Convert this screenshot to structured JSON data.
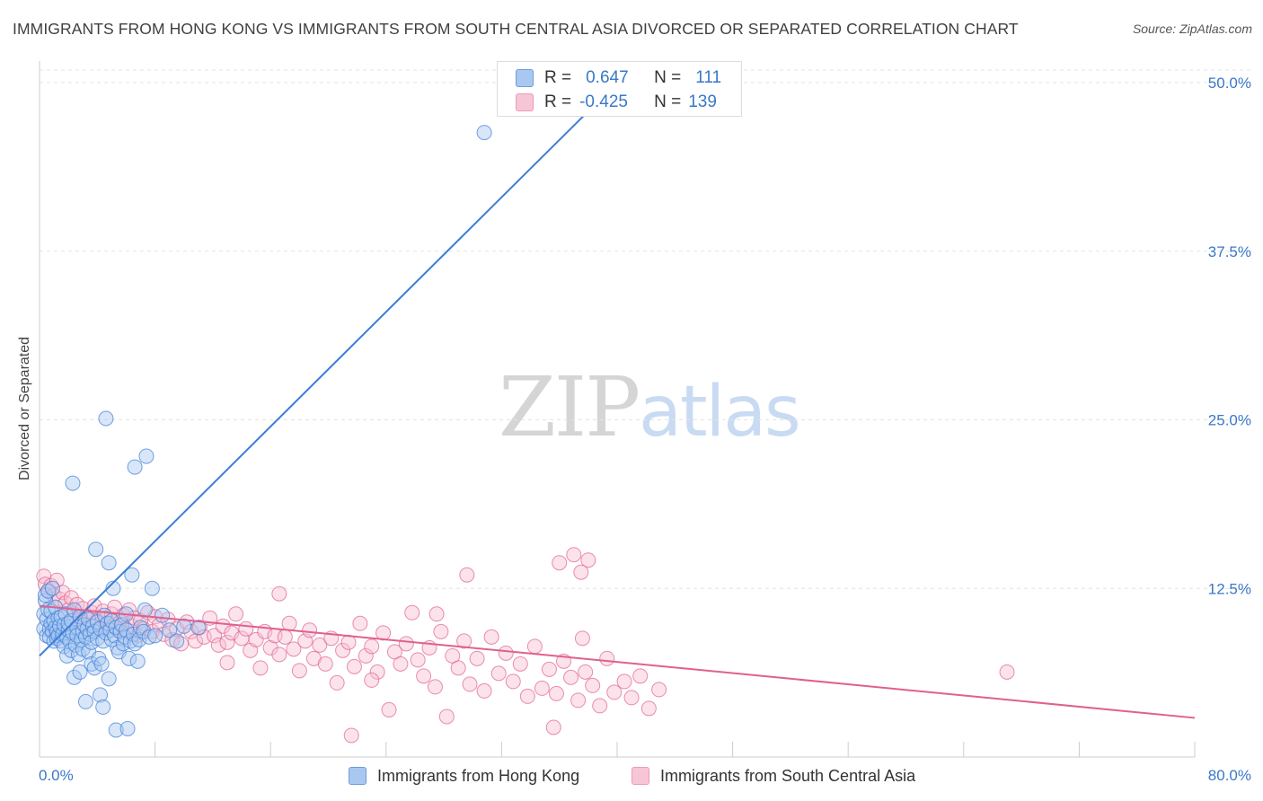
{
  "title": "IMMIGRANTS FROM HONG KONG VS IMMIGRANTS FROM SOUTH CENTRAL ASIA DIVORCED OR SEPARATED CORRELATION CHART",
  "source": "Source: ZipAtlas.com",
  "watermark": {
    "zip": "ZIP",
    "atlas": "atlas"
  },
  "legend_stats": [
    {
      "r_label": "R =",
      "r_value": "0.647",
      "n_label": "N =",
      "n_value": "111",
      "color": "#7fb0ee"
    },
    {
      "r_label": "R =",
      "r_value": "-0.425",
      "n_label": "N =",
      "n_value": "139",
      "color": "#f4a6c0"
    }
  ],
  "chart_data": {
    "type": "scatter",
    "title": "IMMIGRANTS FROM HONG KONG VS IMMIGRANTS FROM SOUTH CENTRAL ASIA DIVORCED OR SEPARATED CORRELATION CHART",
    "xlabel": "",
    "ylabel": "Divorced or Separated",
    "xlim": [
      0,
      80
    ],
    "ylim": [
      0,
      50
    ],
    "x_tick_labels": [
      "0.0%",
      "80.0%"
    ],
    "y_ticks": [
      12.5,
      25.0,
      37.5,
      50.0
    ],
    "y_tick_labels": [
      "12.5%",
      "25.0%",
      "37.5%",
      "50.0%"
    ],
    "grid": true,
    "legend_position": "bottom",
    "series": [
      {
        "name": "Immigrants from Hong Kong",
        "color": "#3b7dd8",
        "fill": "#a9c8f0",
        "trend": [
          [
            0,
            7.5
          ],
          [
            40,
            50
          ]
        ],
        "points": [
          [
            0.3,
            9.5
          ],
          [
            0.3,
            10.6
          ],
          [
            0.4,
            11.6
          ],
          [
            0.4,
            12.0
          ],
          [
            0.5,
            9.0
          ],
          [
            0.5,
            10.2
          ],
          [
            0.6,
            12.3
          ],
          [
            0.6,
            10.9
          ],
          [
            0.7,
            9.5
          ],
          [
            0.7,
            8.9
          ],
          [
            0.8,
            9.9
          ],
          [
            0.8,
            10.8
          ],
          [
            0.9,
            9.3
          ],
          [
            0.9,
            12.5
          ],
          [
            1.0,
            8.6
          ],
          [
            1.0,
            10.1
          ],
          [
            1.1,
            9.6
          ],
          [
            1.1,
            11.1
          ],
          [
            1.2,
            9.3
          ],
          [
            1.2,
            8.8
          ],
          [
            1.3,
            10.3
          ],
          [
            1.3,
            9.0
          ],
          [
            1.4,
            9.7
          ],
          [
            1.5,
            8.6
          ],
          [
            1.5,
            10.4
          ],
          [
            1.6,
            9.1
          ],
          [
            1.7,
            8.2
          ],
          [
            1.7,
            9.8
          ],
          [
            1.8,
            10.6
          ],
          [
            1.9,
            8.9
          ],
          [
            1.9,
            7.5
          ],
          [
            2.0,
            9.4
          ],
          [
            2.0,
            9.9
          ],
          [
            2.1,
            8.6
          ],
          [
            2.2,
            10.1
          ],
          [
            2.2,
            7.9
          ],
          [
            2.3,
            9.2
          ],
          [
            2.4,
            5.9
          ],
          [
            2.4,
            10.9
          ],
          [
            2.5,
            8.3
          ],
          [
            2.6,
            9.6
          ],
          [
            2.6,
            9.0
          ],
          [
            2.7,
            7.6
          ],
          [
            2.8,
            6.3
          ],
          [
            2.8,
            10.4
          ],
          [
            2.9,
            8.7
          ],
          [
            3.0,
            9.3
          ],
          [
            3.0,
            8.0
          ],
          [
            3.1,
            9.8
          ],
          [
            3.2,
            4.1
          ],
          [
            3.2,
            8.9
          ],
          [
            3.3,
            9.5
          ],
          [
            3.4,
            7.8
          ],
          [
            3.4,
            10.2
          ],
          [
            3.5,
            9.1
          ],
          [
            3.6,
            6.9
          ],
          [
            3.6,
            8.5
          ],
          [
            3.7,
            9.7
          ],
          [
            3.8,
            6.6
          ],
          [
            3.8,
            9.3
          ],
          [
            3.9,
            15.4
          ],
          [
            4.0,
            8.8
          ],
          [
            4.0,
            10.0
          ],
          [
            4.1,
            7.3
          ],
          [
            4.2,
            4.6
          ],
          [
            4.2,
            9.5
          ],
          [
            4.3,
            6.9
          ],
          [
            4.4,
            3.7
          ],
          [
            4.4,
            8.6
          ],
          [
            4.5,
            10.5
          ],
          [
            4.6,
            9.2
          ],
          [
            4.7,
            9.9
          ],
          [
            4.8,
            14.4
          ],
          [
            4.8,
            5.8
          ],
          [
            4.9,
            9.4
          ],
          [
            5.0,
            8.7
          ],
          [
            5.0,
            10.1
          ],
          [
            5.1,
            12.5
          ],
          [
            5.2,
            9.0
          ],
          [
            5.3,
            9.6
          ],
          [
            5.3,
            2.0
          ],
          [
            5.4,
            8.1
          ],
          [
            5.5,
            7.8
          ],
          [
            5.6,
            9.3
          ],
          [
            5.7,
            9.8
          ],
          [
            5.8,
            8.4
          ],
          [
            5.9,
            8.9
          ],
          [
            6.0,
            10.6
          ],
          [
            6.0,
            9.4
          ],
          [
            6.1,
            2.1
          ],
          [
            6.2,
            7.3
          ],
          [
            6.3,
            8.6
          ],
          [
            6.4,
            13.5
          ],
          [
            6.5,
            9.1
          ],
          [
            6.6,
            8.4
          ],
          [
            6.6,
            21.5
          ],
          [
            6.8,
            7.1
          ],
          [
            6.9,
            8.7
          ],
          [
            7.0,
            9.6
          ],
          [
            7.2,
            9.3
          ],
          [
            7.3,
            10.9
          ],
          [
            7.4,
            22.3
          ],
          [
            7.6,
            8.9
          ],
          [
            7.8,
            12.5
          ],
          [
            8.0,
            9.0
          ],
          [
            8.5,
            10.5
          ],
          [
            9.0,
            9.4
          ],
          [
            9.5,
            8.6
          ],
          [
            10.0,
            9.7
          ],
          [
            11.0,
            9.6
          ],
          [
            2.3,
            20.3
          ],
          [
            4.6,
            25.1
          ],
          [
            30.8,
            46.3
          ]
        ]
      },
      {
        "name": "Immigrants from South Central Asia",
        "color": "#e0608f",
        "fill": "#f7bfd2",
        "trend": [
          [
            0,
            11.2
          ],
          [
            80,
            2.9
          ]
        ],
        "points": [
          [
            0.3,
            13.4
          ],
          [
            0.4,
            12.8
          ],
          [
            0.6,
            12.3
          ],
          [
            0.8,
            12.7
          ],
          [
            1.0,
            12.0
          ],
          [
            1.2,
            13.1
          ],
          [
            1.4,
            11.7
          ],
          [
            1.6,
            12.2
          ],
          [
            1.8,
            11.4
          ],
          [
            2.0,
            10.9
          ],
          [
            2.2,
            11.8
          ],
          [
            2.4,
            10.6
          ],
          [
            2.6,
            11.3
          ],
          [
            2.8,
            10.2
          ],
          [
            3.0,
            11.0
          ],
          [
            3.2,
            10.4
          ],
          [
            3.4,
            9.8
          ],
          [
            3.6,
            10.7
          ],
          [
            3.8,
            11.2
          ],
          [
            4.0,
            10.1
          ],
          [
            4.2,
            9.6
          ],
          [
            4.4,
            10.8
          ],
          [
            4.6,
            10.3
          ],
          [
            4.8,
            9.9
          ],
          [
            5.0,
            10.6
          ],
          [
            5.2,
            11.1
          ],
          [
            5.4,
            9.4
          ],
          [
            5.6,
            10.0
          ],
          [
            5.8,
            10.5
          ],
          [
            6.0,
            9.2
          ],
          [
            6.2,
            10.9
          ],
          [
            6.4,
            9.7
          ],
          [
            6.6,
            10.3
          ],
          [
            6.8,
            9.0
          ],
          [
            7.0,
            10.1
          ],
          [
            7.2,
            9.5
          ],
          [
            7.5,
            10.7
          ],
          [
            7.8,
            9.3
          ],
          [
            8.0,
            10.4
          ],
          [
            8.3,
            9.8
          ],
          [
            8.6,
            9.1
          ],
          [
            8.9,
            10.2
          ],
          [
            9.2,
            8.7
          ],
          [
            9.5,
            9.5
          ],
          [
            9.8,
            8.4
          ],
          [
            10.2,
            10.0
          ],
          [
            10.5,
            9.3
          ],
          [
            10.8,
            8.6
          ],
          [
            11.1,
            9.6
          ],
          [
            11.4,
            8.9
          ],
          [
            11.8,
            10.3
          ],
          [
            12.1,
            9.0
          ],
          [
            12.4,
            8.3
          ],
          [
            12.7,
            9.7
          ],
          [
            13.0,
            8.5
          ],
          [
            13.3,
            9.2
          ],
          [
            13.6,
            10.6
          ],
          [
            14.0,
            8.8
          ],
          [
            14.3,
            9.5
          ],
          [
            14.6,
            7.9
          ],
          [
            15.0,
            8.7
          ],
          [
            15.3,
            6.6
          ],
          [
            15.6,
            9.3
          ],
          [
            16.0,
            8.1
          ],
          [
            16.3,
            9.0
          ],
          [
            16.6,
            7.6
          ],
          [
            17.0,
            8.9
          ],
          [
            17.3,
            9.9
          ],
          [
            17.6,
            8.0
          ],
          [
            18.0,
            6.4
          ],
          [
            18.4,
            8.6
          ],
          [
            18.7,
            9.4
          ],
          [
            19.0,
            7.3
          ],
          [
            19.4,
            8.3
          ],
          [
            19.8,
            6.9
          ],
          [
            20.2,
            8.8
          ],
          [
            20.6,
            5.5
          ],
          [
            21.0,
            7.9
          ],
          [
            21.4,
            8.5
          ],
          [
            21.8,
            6.7
          ],
          [
            22.2,
            9.9
          ],
          [
            22.6,
            7.5
          ],
          [
            23.0,
            8.2
          ],
          [
            23.4,
            6.3
          ],
          [
            23.8,
            9.2
          ],
          [
            24.2,
            3.5
          ],
          [
            24.6,
            7.8
          ],
          [
            25.0,
            6.9
          ],
          [
            25.4,
            8.4
          ],
          [
            25.8,
            10.7
          ],
          [
            26.2,
            7.2
          ],
          [
            26.6,
            6.0
          ],
          [
            27.0,
            8.1
          ],
          [
            27.4,
            5.2
          ],
          [
            27.8,
            9.3
          ],
          [
            28.2,
            3.0
          ],
          [
            28.6,
            7.5
          ],
          [
            29.0,
            6.6
          ],
          [
            29.4,
            8.6
          ],
          [
            29.8,
            5.4
          ],
          [
            30.3,
            7.3
          ],
          [
            30.8,
            4.9
          ],
          [
            31.3,
            8.9
          ],
          [
            31.8,
            6.2
          ],
          [
            32.3,
            7.7
          ],
          [
            32.8,
            5.6
          ],
          [
            33.3,
            6.9
          ],
          [
            33.8,
            4.5
          ],
          [
            34.3,
            8.2
          ],
          [
            34.8,
            5.1
          ],
          [
            35.3,
            6.5
          ],
          [
            35.8,
            4.7
          ],
          [
            36.3,
            7.1
          ],
          [
            36.8,
            5.9
          ],
          [
            37.3,
            4.2
          ],
          [
            37.8,
            6.3
          ],
          [
            38.3,
            5.3
          ],
          [
            38.8,
            3.8
          ],
          [
            39.3,
            7.3
          ],
          [
            39.8,
            4.8
          ],
          [
            40.5,
            5.6
          ],
          [
            41.0,
            4.4
          ],
          [
            41.6,
            6.0
          ],
          [
            42.2,
            3.6
          ],
          [
            42.9,
            5.0
          ],
          [
            37.0,
            15.0
          ],
          [
            38.0,
            14.6
          ],
          [
            37.5,
            13.7
          ],
          [
            36.0,
            14.4
          ],
          [
            29.6,
            13.5
          ],
          [
            16.6,
            12.1
          ],
          [
            27.5,
            10.6
          ],
          [
            37.6,
            8.8
          ],
          [
            67.0,
            6.3
          ],
          [
            23.0,
            5.7
          ],
          [
            35.6,
            2.2
          ],
          [
            21.6,
            1.6
          ],
          [
            13.0,
            7.0
          ]
        ]
      }
    ]
  },
  "x_axis": {
    "min_label": "0.0%",
    "max_label": "80.0%"
  },
  "ylabel": "Divorced or Separated",
  "bottom_legend": [
    {
      "label": "Immigrants from Hong Kong",
      "color": "#a9c8f0",
      "border": "#6a9de0"
    },
    {
      "label": "Immigrants from South Central Asia",
      "color": "#f7c6d6",
      "border": "#ec9bb8"
    }
  ]
}
